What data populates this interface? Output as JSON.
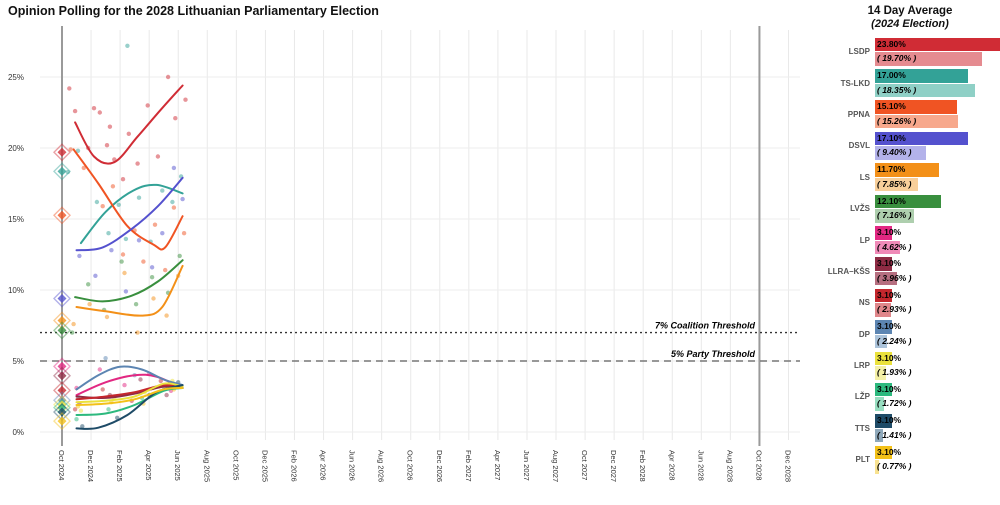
{
  "title": "Opinion Polling for the 2028 Lithuanian Parliamentary Election",
  "panel": {
    "title_line1": "14 Day Average",
    "title_line2": "(2024 Election)"
  },
  "chart_data": {
    "type": "scatter",
    "title": "Opinion Polling for the 2028 Lithuanian Parliamentary Election",
    "x_axis": {
      "tick_months": [
        0,
        2,
        4,
        6,
        8,
        10,
        12,
        14,
        16,
        18,
        20,
        22,
        24,
        26,
        28,
        30,
        32,
        34,
        36,
        38,
        40,
        42,
        44,
        46,
        48,
        50
      ],
      "tick_labels": [
        "Oct 2024",
        "Dec 2024",
        "Feb 2025",
        "Apr 2025",
        "Jun 2025",
        "Aug 2025",
        "Oct 2025",
        "Dec 2025",
        "Feb 2026",
        "Apr 2026",
        "Jun 2026",
        "Aug 2026",
        "Oct 2026",
        "Dec 2026",
        "Feb 2027",
        "Apr 2027",
        "Jun 2027",
        "Aug 2027",
        "Oct 2027",
        "Dec 2027",
        "Feb 2028",
        "Apr 2028",
        "Jun 2028",
        "Aug 2028",
        "Oct 2028",
        "Dec 2028"
      ]
    },
    "y_axis": {
      "tick_values": [
        0,
        5,
        10,
        15,
        20,
        25
      ],
      "tick_labels": [
        "0%",
        "5%",
        "10%",
        "15%",
        "20%",
        "25%"
      ]
    },
    "election_line_months": [
      0,
      48
    ],
    "annotations": [
      {
        "label": "7% Coalition Threshold",
        "y": 7,
        "style": "dotted",
        "color": "#333333"
      },
      {
        "label": "5% Party Threshold",
        "y": 5,
        "style": "dashed",
        "color": "#777777"
      }
    ],
    "legend_position": "right",
    "grid": true,
    "series": [
      {
        "code": "LSDP",
        "color": "#d02c35",
        "light": "#e58b90",
        "avg": 23.8,
        "prev": 19.7,
        "avg_label": "23.80%",
        "prev_label": "( 19.70% )",
        "trend": [
          [
            0.9,
            21.8
          ],
          [
            2.2,
            19.4
          ],
          [
            3.6,
            19.0
          ],
          [
            5.2,
            20.8
          ],
          [
            6.8,
            22.7
          ],
          [
            8.3,
            24.4
          ]
        ],
        "points": [
          [
            0.5,
            24.2
          ],
          [
            0.9,
            22.6
          ],
          [
            1.8,
            20.0
          ],
          [
            2.2,
            22.8
          ],
          [
            2.6,
            22.5
          ],
          [
            3.1,
            20.2
          ],
          [
            3.3,
            21.5
          ],
          [
            3.6,
            19.2
          ],
          [
            4.2,
            17.8
          ],
          [
            4.6,
            21.0
          ],
          [
            5.2,
            18.9
          ],
          [
            5.9,
            23.0
          ],
          [
            6.6,
            19.4
          ],
          [
            7.3,
            25.0
          ],
          [
            7.8,
            22.1
          ],
          [
            8.5,
            23.4
          ]
        ]
      },
      {
        "code": "TS-LKD",
        "color": "#33a297",
        "light": "#8fd0c6",
        "avg": 17.0,
        "prev": 18.35,
        "avg_label": "17.00%",
        "prev_label": "( 18.35% )",
        "trend": [
          [
            1.3,
            13.3
          ],
          [
            3.0,
            15.5
          ],
          [
            4.9,
            17.0
          ],
          [
            6.5,
            17.4
          ],
          [
            8.3,
            16.8
          ]
        ],
        "points": [
          [
            0.4,
            18.3
          ],
          [
            1.1,
            19.8
          ],
          [
            2.4,
            16.2
          ],
          [
            3.2,
            14.0
          ],
          [
            3.9,
            16.0
          ],
          [
            4.4,
            13.6
          ],
          [
            4.5,
            27.2
          ],
          [
            5.3,
            16.5
          ],
          [
            6.1,
            13.4
          ],
          [
            6.9,
            17.0
          ],
          [
            7.6,
            16.2
          ],
          [
            8.2,
            18.0
          ]
        ]
      },
      {
        "code": "PPNA",
        "color": "#f05423",
        "light": "#f7a88c",
        "avg": 15.1,
        "prev": 15.26,
        "avg_label": "15.10%",
        "prev_label": "( 15.26% )",
        "trend": [
          [
            0.8,
            19.9
          ],
          [
            2.5,
            17.5
          ],
          [
            4.5,
            14.5
          ],
          [
            6.3,
            13.2
          ],
          [
            7.1,
            13.0
          ],
          [
            8.3,
            15.2
          ]
        ],
        "points": [
          [
            0.6,
            19.9
          ],
          [
            1.5,
            18.6
          ],
          [
            2.8,
            15.9
          ],
          [
            3.5,
            17.3
          ],
          [
            4.2,
            12.5
          ],
          [
            5.0,
            14.2
          ],
          [
            5.6,
            12.0
          ],
          [
            6.4,
            14.6
          ],
          [
            7.1,
            11.4
          ],
          [
            7.7,
            15.8
          ],
          [
            8.4,
            14.0
          ]
        ]
      },
      {
        "code": "DSVL",
        "color": "#5451ce",
        "light": "#b3b2ea",
        "avg": 17.1,
        "prev": 9.4,
        "avg_label": "17.10%",
        "prev_label": "( 9.40% )",
        "trend": [
          [
            1.0,
            12.8
          ],
          [
            2.8,
            13.0
          ],
          [
            4.8,
            14.3
          ],
          [
            6.6,
            15.9
          ],
          [
            8.3,
            17.9
          ]
        ],
        "points": [
          [
            1.2,
            12.4
          ],
          [
            2.3,
            11.0
          ],
          [
            3.4,
            12.8
          ],
          [
            4.4,
            9.9
          ],
          [
            5.3,
            13.5
          ],
          [
            6.2,
            11.6
          ],
          [
            6.9,
            14.0
          ],
          [
            7.7,
            18.6
          ],
          [
            8.3,
            16.4
          ]
        ]
      },
      {
        "code": "LS",
        "color": "#f39018",
        "light": "#f8cf9a",
        "avg": 11.7,
        "prev": 7.85,
        "avg_label": "11.70%",
        "prev_label": "( 7.85% )",
        "trend": [
          [
            1.0,
            8.8
          ],
          [
            3.0,
            8.5
          ],
          [
            5.5,
            8.2
          ],
          [
            6.9,
            8.8
          ],
          [
            8.3,
            11.7
          ]
        ],
        "points": [
          [
            0.8,
            7.6
          ],
          [
            1.9,
            9.0
          ],
          [
            3.1,
            8.1
          ],
          [
            4.3,
            11.2
          ],
          [
            5.2,
            7.0
          ],
          [
            6.3,
            9.4
          ],
          [
            7.2,
            8.2
          ],
          [
            8.0,
            11.0
          ]
        ]
      },
      {
        "code": "LVŽS",
        "color": "#398f3e",
        "light": "#aecfae",
        "avg": 12.1,
        "prev": 7.16,
        "avg_label": "12.10%",
        "prev_label": "( 7.16% )",
        "trend": [
          [
            0.9,
            9.5
          ],
          [
            2.8,
            9.2
          ],
          [
            4.8,
            9.6
          ],
          [
            6.6,
            10.6
          ],
          [
            8.3,
            12.1
          ]
        ],
        "points": [
          [
            0.7,
            7.0
          ],
          [
            1.8,
            10.4
          ],
          [
            2.9,
            8.6
          ],
          [
            4.1,
            12.0
          ],
          [
            5.1,
            9.0
          ],
          [
            6.2,
            10.9
          ],
          [
            7.3,
            9.8
          ],
          [
            8.1,
            12.4
          ]
        ]
      },
      {
        "code": "LP",
        "color": "#e22882",
        "light": "#f08ab8",
        "avg": 3.1,
        "prev": 4.62,
        "avg_label": "3.10%",
        "prev_label": "( 4.62% )",
        "trend": [
          [
            1.0,
            2.6
          ],
          [
            3.0,
            3.5
          ],
          [
            5.0,
            4.0
          ],
          [
            6.5,
            3.9
          ],
          [
            8.3,
            3.1
          ]
        ],
        "points": [
          [
            1.0,
            3.1
          ],
          [
            2.6,
            4.4
          ],
          [
            4.3,
            3.3
          ],
          [
            6.0,
            4.1
          ],
          [
            7.5,
            2.9
          ]
        ]
      },
      {
        "code": "LLRA–KŠS",
        "color": "#8e2b44",
        "light": "#b66f80",
        "avg": 3.1,
        "prev": 3.96,
        "avg_label": "3.10%",
        "prev_label": "( 3.96% )",
        "trend": [
          [
            1.0,
            2.5
          ],
          [
            3.0,
            2.4
          ],
          [
            5.0,
            2.7
          ],
          [
            7.0,
            3.2
          ],
          [
            8.3,
            3.1
          ]
        ],
        "points": [
          [
            1.2,
            2.0
          ],
          [
            3.3,
            2.6
          ],
          [
            5.4,
            3.7
          ],
          [
            7.2,
            2.6
          ]
        ]
      },
      {
        "code": "NS",
        "color": "#c4272d",
        "light": "#e0868a",
        "avg": 3.1,
        "prev": 2.93,
        "avg_label": "3.10%",
        "prev_label": "( 2.93% )",
        "trend": [
          [
            1.0,
            2.3
          ],
          [
            3.0,
            2.5
          ],
          [
            5.0,
            2.8
          ],
          [
            7.0,
            3.3
          ],
          [
            8.3,
            3.1
          ]
        ],
        "points": [
          [
            0.9,
            1.6
          ],
          [
            2.8,
            3.0
          ],
          [
            4.8,
            2.2
          ],
          [
            6.8,
            3.6
          ]
        ]
      },
      {
        "code": "DP",
        "color": "#5c85b2",
        "light": "#abc3da",
        "avg": 3.1,
        "prev": 2.24,
        "avg_label": "3.10%",
        "prev_label": "( 2.24% )",
        "trend": [
          [
            1.0,
            3.0
          ],
          [
            2.5,
            4.0
          ],
          [
            4.0,
            4.6
          ],
          [
            5.5,
            4.4
          ],
          [
            7.0,
            3.7
          ],
          [
            8.3,
            3.3
          ]
        ],
        "points": [
          [
            1.1,
            2.5
          ],
          [
            3.0,
            5.2
          ],
          [
            5.0,
            4.0
          ],
          [
            7.0,
            3.2
          ]
        ]
      },
      {
        "code": "LRP",
        "color": "#eae13c",
        "light": "#f4f0a6",
        "avg": 3.1,
        "prev": 1.93,
        "avg_label": "3.10%",
        "prev_label": "( 1.93% )",
        "trend": [
          [
            1.0,
            2.1
          ],
          [
            3.0,
            2.2
          ],
          [
            5.0,
            2.5
          ],
          [
            7.0,
            3.4
          ],
          [
            8.3,
            3.2
          ]
        ],
        "points": [
          [
            1.3,
            1.5
          ],
          [
            3.6,
            2.4
          ],
          [
            5.7,
            2.8
          ],
          [
            7.6,
            3.6
          ]
        ]
      },
      {
        "code": "LŽP",
        "color": "#2cb97e",
        "light": "#97dec0",
        "avg": 3.1,
        "prev": 1.72,
        "avg_label": "3.10%",
        "prev_label": "( 1.72% )",
        "trend": [
          [
            1.0,
            1.2
          ],
          [
            3.0,
            1.3
          ],
          [
            5.0,
            1.9
          ],
          [
            7.0,
            2.9
          ],
          [
            8.3,
            3.1
          ]
        ],
        "points": [
          [
            1.0,
            0.9
          ],
          [
            3.2,
            1.6
          ],
          [
            5.5,
            2.4
          ],
          [
            7.4,
            3.4
          ]
        ]
      },
      {
        "code": "TTS",
        "color": "#1e4b67",
        "light": "#8fa9bb",
        "avg": 3.1,
        "prev": 1.41,
        "avg_label": "3.10%",
        "prev_label": "( 1.41% )",
        "trend": [
          [
            1.0,
            0.25
          ],
          [
            2.5,
            0.3
          ],
          [
            4.5,
            1.2
          ],
          [
            6.5,
            2.8
          ],
          [
            8.3,
            3.3
          ]
        ],
        "points": [
          [
            1.4,
            0.4
          ],
          [
            3.8,
            1.0
          ],
          [
            6.0,
            2.6
          ],
          [
            8.0,
            3.5
          ]
        ]
      },
      {
        "code": "PLT",
        "color": "#f3c119",
        "light": "#f9e391",
        "avg": 3.1,
        "prev": 0.77,
        "avg_label": "3.10%",
        "prev_label": "( 0.77% )",
        "trend": [
          [
            1.0,
            1.9
          ],
          [
            3.0,
            2.0
          ],
          [
            5.0,
            2.3
          ],
          [
            7.0,
            3.0
          ],
          [
            8.3,
            3.1
          ]
        ],
        "points": [
          [
            1.1,
            1.8
          ],
          [
            3.4,
            2.1
          ],
          [
            5.6,
            2.0
          ],
          [
            7.7,
            3.0
          ]
        ]
      }
    ]
  }
}
